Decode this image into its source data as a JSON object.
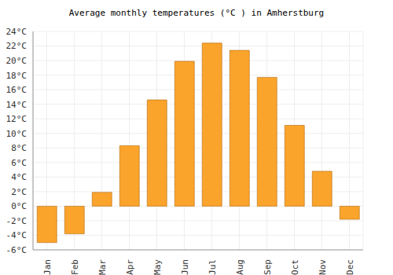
{
  "chart_data": {
    "type": "bar",
    "title": "Average monthly temperatures (°C ) in Amherstburg",
    "categories": [
      "Jan",
      "Feb",
      "Mar",
      "Apr",
      "May",
      "Jun",
      "Jul",
      "Aug",
      "Sep",
      "Oct",
      "Nov",
      "Dec"
    ],
    "values": [
      -5,
      -3.8,
      1.9,
      8.3,
      14.6,
      19.9,
      22.4,
      21.4,
      17.7,
      11.1,
      4.8,
      -1.8
    ],
    "color": "#fba42c",
    "ylim": [
      -6,
      24
    ],
    "yticks": [
      {
        "value": -6,
        "label": "-6°C"
      },
      {
        "value": -4,
        "label": "-4°C"
      },
      {
        "value": -2,
        "label": "-2°C"
      },
      {
        "value": 0,
        "label": "0°C"
      },
      {
        "value": 2,
        "label": "2°C"
      },
      {
        "value": 4,
        "label": "4°C"
      },
      {
        "value": 6,
        "label": "6°C"
      },
      {
        "value": 8,
        "label": "8°C"
      },
      {
        "value": 10,
        "label": "10°C"
      },
      {
        "value": 12,
        "label": "12°C"
      },
      {
        "value": 14,
        "label": "14°C"
      },
      {
        "value": 16,
        "label": "16°C"
      },
      {
        "value": 18,
        "label": "18°C"
      },
      {
        "value": 20,
        "label": "20°C"
      },
      {
        "value": 22,
        "label": "22°C"
      },
      {
        "value": 24,
        "label": "24°C"
      }
    ],
    "grid": true
  }
}
